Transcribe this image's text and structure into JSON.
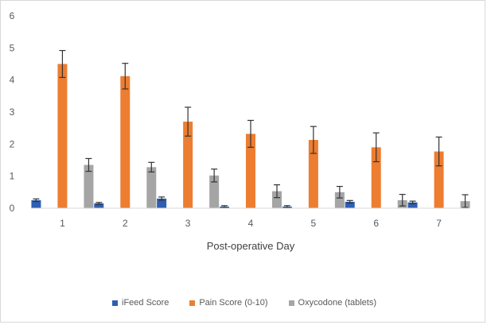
{
  "chart_data": {
    "type": "bar",
    "title": "",
    "xlabel": "Post-operative Day",
    "ylabel": "",
    "categories": [
      "1",
      "2",
      "3",
      "4",
      "5",
      "6",
      "7"
    ],
    "ylim": [
      0,
      6
    ],
    "yticks": [
      "0",
      "1",
      "2",
      "3",
      "4",
      "5",
      "6"
    ],
    "grid": false,
    "legend_position": "bottom",
    "series": [
      {
        "name": "iFeed Score",
        "color": "#2e5fb5",
        "values": [
          0.25,
          0.15,
          0.3,
          0.05,
          0.05,
          0.2,
          0.18
        ],
        "error": [
          0.04,
          0.03,
          0.05,
          0.03,
          0.03,
          0.04,
          0.04
        ]
      },
      {
        "name": "Pain Score (0-10)",
        "color": "#ed7d31",
        "values": [
          4.5,
          4.12,
          2.7,
          2.32,
          2.13,
          1.9,
          1.77
        ],
        "error": [
          0.42,
          0.4,
          0.45,
          0.42,
          0.42,
          0.45,
          0.45
        ]
      },
      {
        "name": "Oxycodone (tablets)",
        "color": "#a5a5a5",
        "values": [
          1.35,
          1.28,
          1.02,
          0.53,
          0.5,
          0.25,
          0.22
        ],
        "error": [
          0.2,
          0.15,
          0.2,
          0.2,
          0.18,
          0.18,
          0.2
        ]
      }
    ]
  }
}
